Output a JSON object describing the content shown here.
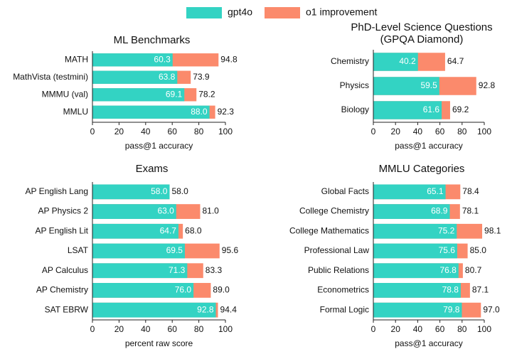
{
  "chart_data": [
    {
      "type": "bar",
      "horizontal": true,
      "title": "ML Benchmarks",
      "categories": [
        "MATH",
        "MathVista (testmini)",
        "MMMU (val)",
        "MMLU"
      ],
      "series": [
        {
          "name": "gpt4o",
          "color": "#33d3c3",
          "values": [
            60.3,
            63.8,
            69.1,
            88.0
          ],
          "value_labels": [
            "60.3",
            "63.8",
            "69.1",
            "88.0"
          ]
        },
        {
          "name": "o1 improvement",
          "color": "#fb8a6c",
          "values": [
            94.8,
            73.9,
            78.2,
            92.3
          ],
          "value_labels": [
            "94.8",
            "73.9",
            "78.2",
            "92.3"
          ]
        }
      ],
      "xlim": [
        0,
        100
      ],
      "xticks": [
        0,
        20,
        40,
        60,
        80,
        100
      ],
      "xlabel": "pass@1 accuracy"
    },
    {
      "type": "bar",
      "horizontal": true,
      "title": "PhD-Level Science Questions",
      "subtitle": "(GPQA Diamond)",
      "categories": [
        "Chemistry",
        "Physics",
        "Biology"
      ],
      "series": [
        {
          "name": "gpt4o",
          "color": "#33d3c3",
          "values": [
            40.2,
            59.5,
            61.6
          ],
          "value_labels": [
            "40.2",
            "59.5",
            "61.6"
          ]
        },
        {
          "name": "o1 improvement",
          "color": "#fb8a6c",
          "values": [
            64.7,
            92.8,
            69.2
          ],
          "value_labels": [
            "64.7",
            "92.8",
            "69.2"
          ]
        }
      ],
      "xlim": [
        0,
        100
      ],
      "xticks": [
        0,
        20,
        40,
        60,
        80,
        100
      ],
      "xlabel": "pass@1 accuracy"
    },
    {
      "type": "bar",
      "horizontal": true,
      "title": "Exams",
      "categories": [
        "AP English Lang",
        "AP Physics 2",
        "AP English Lit",
        "LSAT",
        "AP Calculus",
        "AP Chemistry",
        "SAT EBRW"
      ],
      "series": [
        {
          "name": "gpt4o",
          "color": "#33d3c3",
          "values": [
            58.0,
            63.0,
            64.7,
            69.5,
            71.3,
            76.0,
            92.8
          ],
          "value_labels": [
            "58.0",
            "63.0",
            "64.7",
            "69.5",
            "71.3",
            "76.0",
            "92.8"
          ]
        },
        {
          "name": "o1 improvement",
          "color": "#fb8a6c",
          "values": [
            58.0,
            81.0,
            68.0,
            95.6,
            83.3,
            89.0,
            94.4
          ],
          "value_labels": [
            "58.0",
            "81.0",
            "68.0",
            "95.6",
            "83.3",
            "89.0",
            "94.4"
          ]
        }
      ],
      "xlim": [
        0,
        100
      ],
      "xticks": [
        0,
        20,
        40,
        60,
        80,
        100
      ],
      "xlabel": "percent raw score"
    },
    {
      "type": "bar",
      "horizontal": true,
      "title": "MMLU Categories",
      "categories": [
        "Global Facts",
        "College Chemistry",
        "College Mathematics",
        "Professional Law",
        "Public Relations",
        "Econometrics",
        "Formal Logic"
      ],
      "series": [
        {
          "name": "gpt4o",
          "color": "#33d3c3",
          "values": [
            65.1,
            68.9,
            75.2,
            75.6,
            76.8,
            78.8,
            79.8
          ],
          "value_labels": [
            "65.1",
            "68.9",
            "75.2",
            "75.6",
            "76.8",
            "78.8",
            "79.8"
          ]
        },
        {
          "name": "o1 improvement",
          "color": "#fb8a6c",
          "values": [
            78.4,
            78.1,
            98.1,
            85.0,
            80.7,
            87.1,
            97.0
          ],
          "value_labels": [
            "78.4",
            "78.1",
            "98.1",
            "85.0",
            "80.7",
            "87.1",
            "97.0"
          ]
        }
      ],
      "xlim": [
        0,
        100
      ],
      "xticks": [
        0,
        20,
        40,
        60,
        80,
        100
      ],
      "xlabel": "pass@1 accuracy"
    }
  ]
}
